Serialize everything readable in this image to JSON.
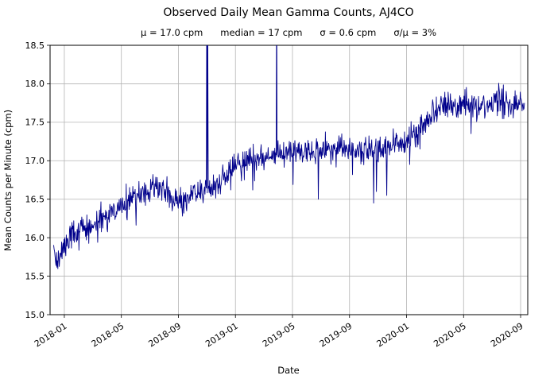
{
  "chart_data": {
    "type": "line",
    "title": "Observed Daily Mean Gamma Counts, AJ4CO",
    "stats_line": "μ = 17.0 cpm      median = 17 cpm      σ = 0.6 cpm      σ/μ = 3%",
    "stats": {
      "mu_cpm": 17.0,
      "median_cpm": 17,
      "sigma_cpm": 0.6,
      "sigma_over_mu": "3%"
    },
    "xlabel": "Date",
    "ylabel": "Mean Counts per Minute (cpm)",
    "ylim": [
      15.0,
      18.5
    ],
    "yticks": [
      15.0,
      15.5,
      16.0,
      16.5,
      17.0,
      17.5,
      18.0,
      18.5
    ],
    "xticks": [
      {
        "m": 0,
        "label": "2018-01"
      },
      {
        "m": 4,
        "label": "2018-05"
      },
      {
        "m": 8,
        "label": "2018-09"
      },
      {
        "m": 12,
        "label": "2019-01"
      },
      {
        "m": 16,
        "label": "2019-05"
      },
      {
        "m": 20,
        "label": "2019-09"
      },
      {
        "m": 24,
        "label": "2020-01"
      },
      {
        "m": 28,
        "label": "2020-05"
      },
      {
        "m": 32,
        "label": "2020-09"
      }
    ],
    "x_domain_months": [
      -1.0,
      32.5
    ],
    "x_data_range": [
      -0.75,
      32.3
    ],
    "grid": true,
    "grid_color": "#b3b3b3",
    "line_color": "#00008b",
    "series_name": "daily mean gamma counts",
    "anchors": [
      [
        -0.75,
        15.82
      ],
      [
        -0.4,
        15.68
      ],
      [
        0,
        15.9
      ],
      [
        0.7,
        16.05
      ],
      [
        1.5,
        16.1
      ],
      [
        2.5,
        16.2
      ],
      [
        3.5,
        16.35
      ],
      [
        4.5,
        16.5
      ],
      [
        5.5,
        16.55
      ],
      [
        6.5,
        16.65
      ],
      [
        7.0,
        16.65
      ],
      [
        7.6,
        16.5
      ],
      [
        8.2,
        16.45
      ],
      [
        8.8,
        16.55
      ],
      [
        9.5,
        16.6
      ],
      [
        10.2,
        16.62
      ],
      [
        11.0,
        16.75
      ],
      [
        11.8,
        16.9
      ],
      [
        12.5,
        16.98
      ],
      [
        13.5,
        17.02
      ],
      [
        14.5,
        17.08
      ],
      [
        15.5,
        17.1
      ],
      [
        16.5,
        17.12
      ],
      [
        17.5,
        17.08
      ],
      [
        18.5,
        17.15
      ],
      [
        19.5,
        17.18
      ],
      [
        20.5,
        17.12
      ],
      [
        21.5,
        17.15
      ],
      [
        22.3,
        17.1
      ],
      [
        23.0,
        17.2
      ],
      [
        24.0,
        17.28
      ],
      [
        25.0,
        17.42
      ],
      [
        25.8,
        17.6
      ],
      [
        26.5,
        17.72
      ],
      [
        27.5,
        17.7
      ],
      [
        28.5,
        17.75
      ],
      [
        29.5,
        17.7
      ],
      [
        30.5,
        17.75
      ],
      [
        31.5,
        17.72
      ],
      [
        32.0,
        17.8
      ],
      [
        32.3,
        17.6
      ]
    ],
    "dips": [
      [
        8.3,
        16.28
      ],
      [
        13.2,
        16.62
      ],
      [
        17.8,
        16.5
      ],
      [
        21.7,
        16.45
      ],
      [
        21.9,
        16.6
      ],
      [
        22.6,
        16.55
      ]
    ],
    "spikes": [
      [
        10.0,
        19.5
      ],
      [
        10.06,
        18.8
      ],
      [
        14.9,
        19.5
      ]
    ],
    "noise_sigma": 0.085,
    "seed": 42
  }
}
